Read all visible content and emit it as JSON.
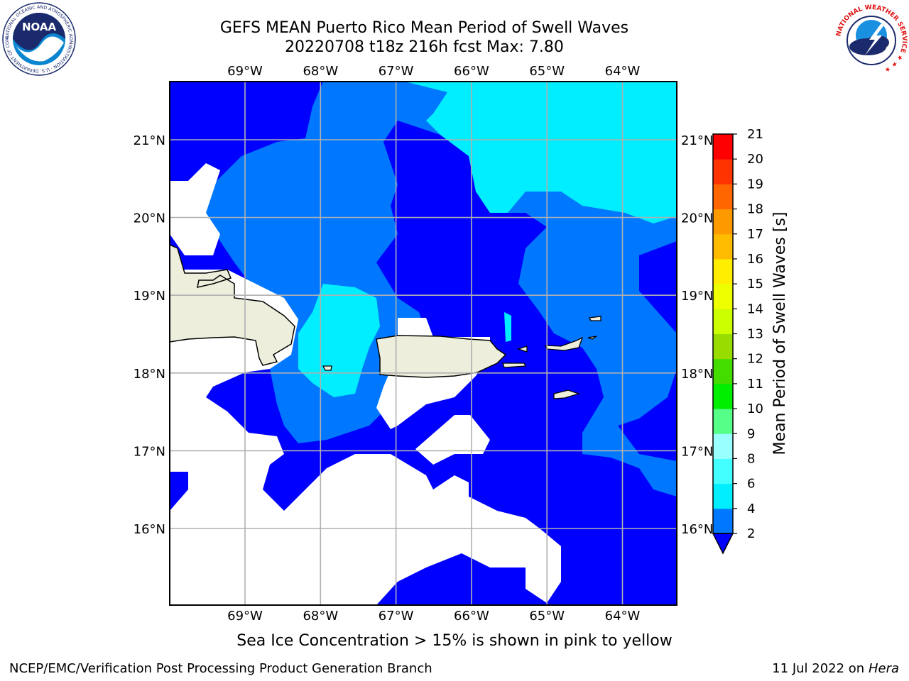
{
  "header": {
    "title_line1": "GEFS MEAN Puerto Rico Mean Period of Swell Waves",
    "title_line2": "20220708 t18z 216h fcst   Max: 7.80"
  },
  "map": {
    "lon_labels": [
      "69°W",
      "68°W",
      "67°W",
      "66°W",
      "65°W",
      "64°W"
    ],
    "lat_labels": [
      "21°N",
      "20°N",
      "19°N",
      "18°N",
      "17°N",
      "16°N"
    ],
    "lon_values": [
      -69,
      -68,
      -67,
      -66,
      -65,
      -64
    ],
    "lat_values": [
      21,
      20,
      19,
      18,
      17,
      16
    ],
    "grid": true,
    "land_color": "#eeeedd",
    "no_data_color": "#ffffff"
  },
  "colorbar": {
    "label": "Mean Period of Swell Waves [s]",
    "ticks": [
      "2",
      "4",
      "6",
      "8",
      "9",
      "10",
      "11",
      "12",
      "13",
      "14",
      "15",
      "16",
      "17",
      "18",
      "19",
      "20",
      "21"
    ],
    "colors": [
      "#0000ff",
      "#0077ff",
      "#00eeff",
      "#44ffff",
      "#99ffff",
      "#55ff88",
      "#00ee00",
      "#44dd00",
      "#99dd00",
      "#ccff00",
      "#eeff00",
      "#ffee00",
      "#ffbb00",
      "#ff9900",
      "#ff6600",
      "#ff3300",
      "#ff0000"
    ],
    "extend": "min"
  },
  "footer": {
    "subtitle": "Sea Ice Concentration > 15% is shown in pink to yellow",
    "credit": "NCEP/EMC/Verification Post Processing Product Generation Branch",
    "date_prefix": "11 Jul 2022 on ",
    "date_host": "Hera"
  },
  "logos": {
    "noaa_text": "NOAA",
    "noaa_ring": "NATIONAL OCEANIC AND ATMOSPHERIC ADMINISTRATION · U.S. DEPARTMENT OF COMMERCE ·",
    "nws_ring": "NATIONAL WEATHER SERVICE ★ ★ ★"
  }
}
